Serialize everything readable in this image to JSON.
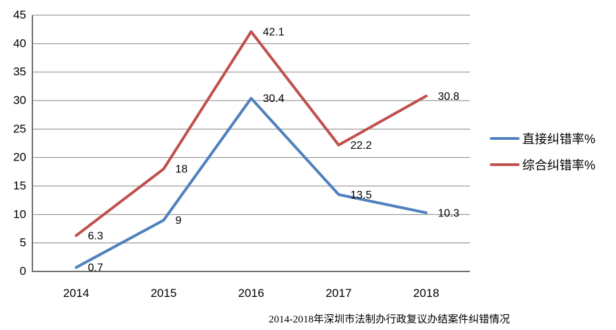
{
  "chart_data": {
    "type": "line",
    "title": "2014-2018年深圳市法制办行政复议办结案件纠错情况",
    "categories": [
      "2014",
      "2015",
      "2016",
      "2017",
      "2018"
    ],
    "series": [
      {
        "name": "直接纠错率%",
        "color": "#4F81BD",
        "values": [
          0.7,
          9,
          30.4,
          13.5,
          10.3
        ]
      },
      {
        "name": "综合纠错率%",
        "color": "#C0504D",
        "values": [
          6.3,
          18,
          42.1,
          22.2,
          30.8
        ]
      }
    ],
    "ylim": [
      0,
      45
    ],
    "yticks": [
      0,
      5,
      10,
      15,
      20,
      25,
      30,
      35,
      40,
      45
    ],
    "grid": true,
    "data_labels": true,
    "legend_position": "right",
    "grid_color": "#868686",
    "axis_color": "#6f6f6f",
    "label_color": "#000000",
    "background": "#ffffff"
  }
}
